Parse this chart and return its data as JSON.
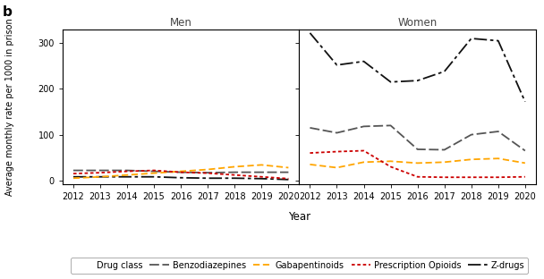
{
  "years": [
    2012,
    2013,
    2014,
    2015,
    2016,
    2017,
    2018,
    2019,
    2020
  ],
  "men": {
    "benzodiazepines": [
      22,
      22,
      22,
      20,
      18,
      17,
      18,
      18,
      18
    ],
    "gabapentinoids": [
      5,
      8,
      12,
      16,
      20,
      24,
      30,
      34,
      28
    ],
    "prescription_opioids": [
      15,
      17,
      20,
      22,
      18,
      16,
      12,
      8,
      4
    ],
    "z_drugs": [
      8,
      8,
      8,
      8,
      6,
      5,
      5,
      4,
      2
    ]
  },
  "women": {
    "benzodiazepines": [
      115,
      104,
      118,
      120,
      68,
      67,
      100,
      107,
      65
    ],
    "gabapentinoids": [
      35,
      28,
      40,
      42,
      38,
      40,
      46,
      48,
      38
    ],
    "prescription_opioids": [
      60,
      63,
      65,
      30,
      8,
      7,
      7,
      7,
      8
    ],
    "z_drugs": [
      322,
      252,
      260,
      215,
      218,
      238,
      310,
      305,
      172
    ]
  },
  "colors": {
    "benzodiazepines": "#555555",
    "gabapentinoids": "#FFA500",
    "prescription_opioids": "#CC0000",
    "z_drugs": "#111111"
  },
  "ylabel": "Average monthly rate per 1000 in prison",
  "xlabel": "Year",
  "ylim": [
    -8,
    330
  ],
  "yticks": [
    0,
    100,
    200,
    300
  ],
  "panel_label": "b",
  "title_men": "Men",
  "title_women": "Women"
}
